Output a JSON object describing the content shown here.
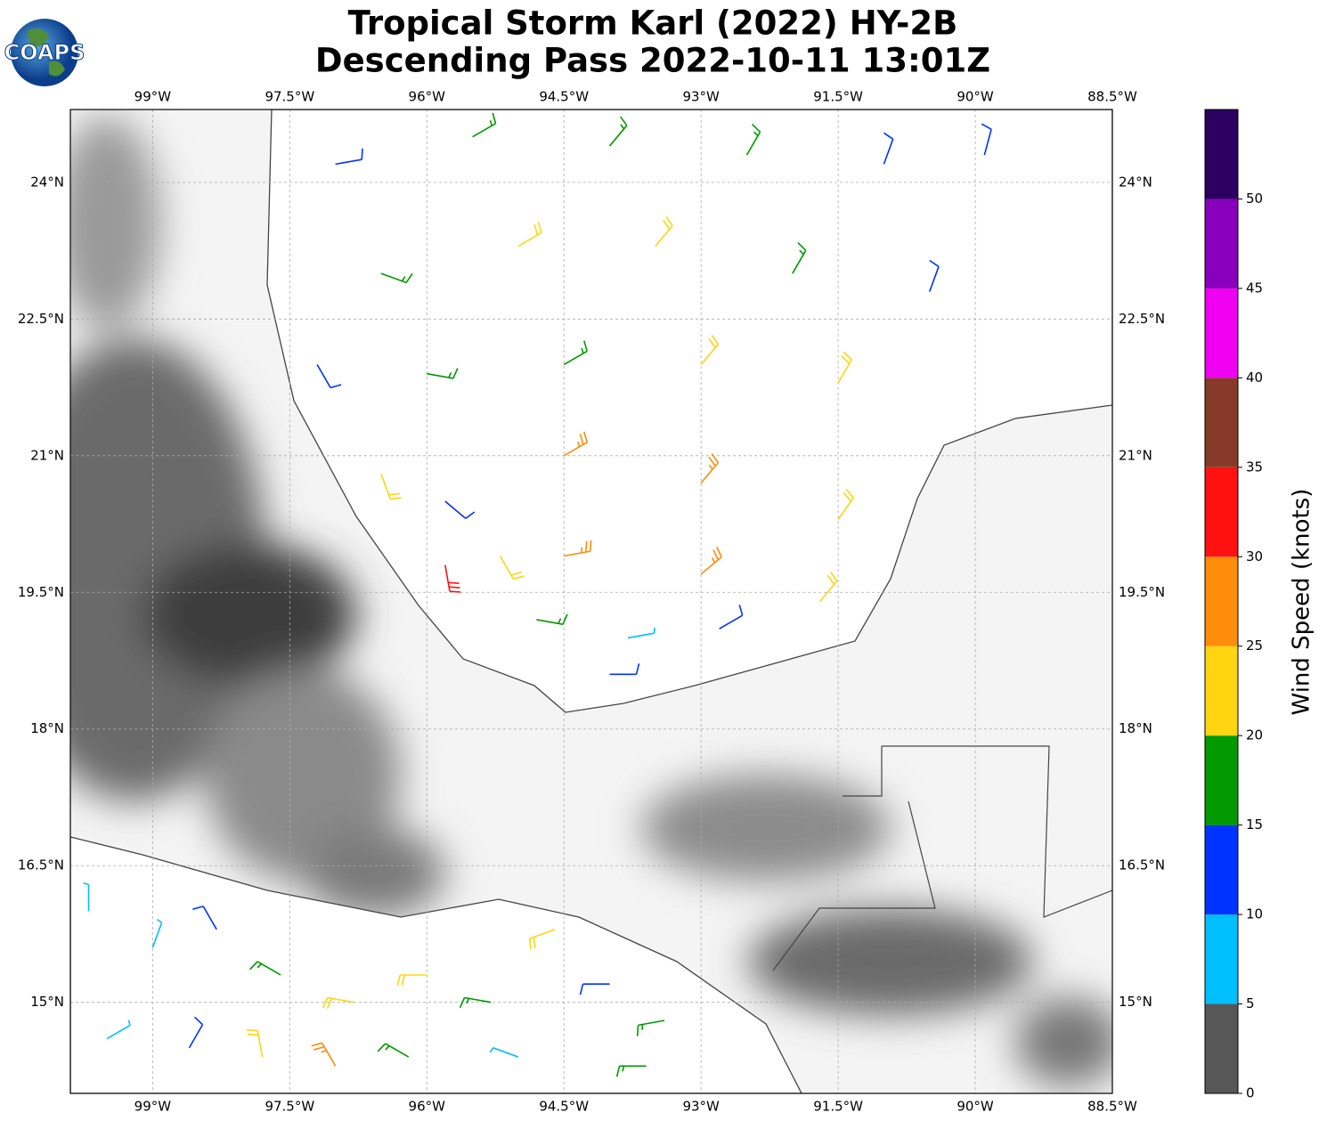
{
  "logo": "COAPS",
  "chart_data": {
    "type": "barb",
    "title": "Tropical Storm Karl (2022) HY-2B",
    "subtitle": "Descending Pass 2022-10-11 13:01Z",
    "xlim": [
      -99.9,
      -88.5
    ],
    "ylim": [
      14,
      24.8
    ],
    "grid": true,
    "xticks": [
      {
        "value": -99,
        "label": "99°W"
      },
      {
        "value": -97.5,
        "label": "97.5°W"
      },
      {
        "value": -96,
        "label": "96°W"
      },
      {
        "value": -94.5,
        "label": "94.5°W"
      },
      {
        "value": -93,
        "label": "93°W"
      },
      {
        "value": -91.5,
        "label": "91.5°W"
      },
      {
        "value": -90,
        "label": "90°W"
      },
      {
        "value": -88.5,
        "label": "88.5°W"
      }
    ],
    "yticks": [
      {
        "value": 15,
        "label": "15°N"
      },
      {
        "value": 16.5,
        "label": "16.5°N"
      },
      {
        "value": 18,
        "label": "18°N"
      },
      {
        "value": 19.5,
        "label": "19.5°N"
      },
      {
        "value": 21,
        "label": "21°N"
      },
      {
        "value": 22.5,
        "label": "22.5°N"
      },
      {
        "value": 24,
        "label": "24°N"
      }
    ],
    "barbs": {
      "lon": [
        -97.0,
        -95.5,
        -94.0,
        -92.5,
        -91.0,
        -89.9,
        -96.5,
        -95.0,
        -93.5,
        -92.0,
        -90.5,
        -97.2,
        -96.0,
        -94.5,
        -93.0,
        -91.5,
        -96.5,
        -95.8,
        -94.5,
        -93.0,
        -91.5,
        -95.8,
        -95.2,
        -94.5,
        -93.0,
        -91.7,
        -94.8,
        -93.8,
        -92.8,
        -94.0,
        -99.7,
        -99.0,
        -98.3,
        -97.6,
        -96.8,
        -96.0,
        -95.3,
        -94.6,
        -94.0,
        -93.4,
        -99.5,
        -98.6,
        -97.8,
        -97.0,
        -96.2,
        -95.0,
        -93.6
      ],
      "lat": [
        24.2,
        24.5,
        24.4,
        24.3,
        24.2,
        24.3,
        23.0,
        23.3,
        23.3,
        23.0,
        22.8,
        22.0,
        21.9,
        22.0,
        22.0,
        21.8,
        20.8,
        20.5,
        21.0,
        20.7,
        20.3,
        19.8,
        19.9,
        19.9,
        19.7,
        19.4,
        19.2,
        19.0,
        19.1,
        18.6,
        16.0,
        15.6,
        15.8,
        15.3,
        15.0,
        15.3,
        15.0,
        15.8,
        15.2,
        14.8,
        14.6,
        14.5,
        14.4,
        14.3,
        14.4,
        14.4,
        14.3
      ],
      "speed": [
        12,
        17,
        17,
        17,
        12,
        12,
        17,
        22,
        22,
        17,
        12,
        12,
        17,
        17,
        22,
        22,
        22,
        12,
        27,
        27,
        22,
        32,
        22,
        27,
        27,
        22,
        17,
        7,
        12,
        12,
        7,
        7,
        12,
        17,
        22,
        22,
        17,
        22,
        12,
        17,
        7,
        12,
        22,
        27,
        17,
        7,
        17
      ],
      "dir": [
        80,
        60,
        40,
        30,
        20,
        15,
        110,
        60,
        40,
        30,
        20,
        150,
        100,
        60,
        40,
        30,
        160,
        130,
        60,
        40,
        35,
        170,
        150,
        80,
        50,
        40,
        100,
        80,
        60,
        90,
        0,
        20,
        330,
        300,
        280,
        270,
        280,
        250,
        270,
        260,
        60,
        30,
        350,
        330,
        300,
        290,
        270
      ]
    },
    "colorbar": {
      "label": "Wind Speed (knots)",
      "ylim": [
        0,
        55
      ],
      "yticks": [
        0,
        5,
        10,
        15,
        20,
        25,
        30,
        35,
        40,
        45,
        50
      ],
      "colors": [
        "#575757",
        "#00bfff",
        "#0033ff",
        "#009900",
        "#ffd511",
        "#ff8c0a",
        "#ff1111",
        "#873a28",
        "#f000f0",
        "#8800bb",
        "#2b0060"
      ]
    }
  }
}
